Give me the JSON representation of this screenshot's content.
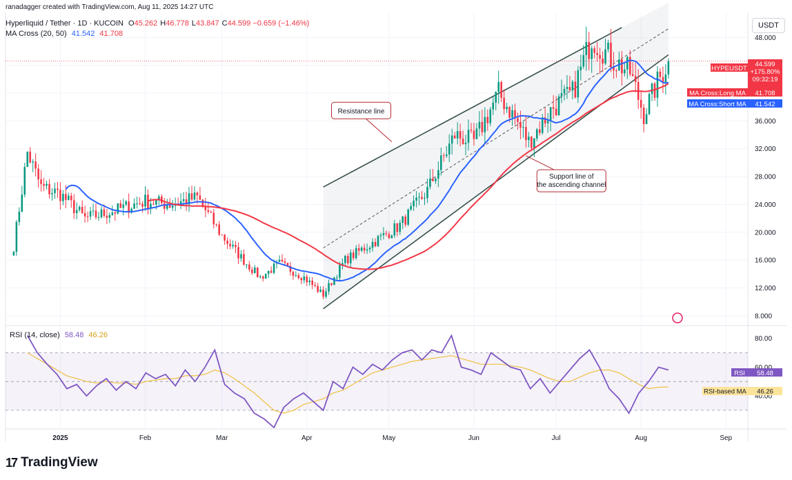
{
  "header": {
    "credit": "ranadagger created with TradingView.com, Aug 11, 2025 14:27 UTC",
    "symbol_line": "Hyperliquid / Tether · 1D · KUCOIN",
    "ohlc": [
      {
        "k": "O",
        "v": "45.262"
      },
      {
        "k": "H",
        "v": "46.778"
      },
      {
        "k": "L",
        "v": "43.847"
      },
      {
        "k": "C",
        "v": "44.599"
      }
    ],
    "change": "−0.659 (−1.46%)",
    "ma_label": "MA Cross (20, 50)",
    "ma_short_value": "41.542",
    "ma_long_value": "41.708",
    "rsi_label": "RSI (14, close)",
    "rsi_value": "58.48",
    "rsi_ma_value": "46.26",
    "currency": "USDT"
  },
  "brand": {
    "name": "TradingView"
  },
  "colors": {
    "up": "#089981",
    "down": "#f23645",
    "ma_short": "#2962ff",
    "ma_long": "#f23645",
    "rsi": "#7e57c2",
    "rsi_ma": "#f0c040",
    "channel": "#37504a"
  },
  "chart_data": [
    {
      "type": "candlestick",
      "title": "Hyperliquid / Tether · 1D · KUCOIN",
      "y_axis": {
        "ticks": [
          8,
          12,
          16,
          20,
          24,
          28,
          32,
          36,
          40,
          44,
          48
        ],
        "ylim": [
          6.6,
          51.6
        ],
        "labels": [
          "8.000",
          "12.000",
          "16.000",
          "20.000",
          "24.000",
          "28.000",
          "32.000",
          "36.000",
          "40.000",
          "44.000",
          "48.000"
        ]
      },
      "x_axis": {
        "labels": [
          "2025",
          "Feb",
          "Mar",
          "Apr",
          "May",
          "Jun",
          "Jul",
          "Aug",
          "Sep"
        ]
      },
      "series": {
        "price_close_approx": [
          {
            "date": "2024-12-15",
            "close": 18.0
          },
          {
            "date": "2024-12-20",
            "close": 31.5
          },
          {
            "date": "2024-12-25",
            "close": 26.5
          },
          {
            "date": "2025-01-01",
            "close": 25.5
          },
          {
            "date": "2025-01-10",
            "close": 22.0
          },
          {
            "date": "2025-01-20",
            "close": 23.0
          },
          {
            "date": "2025-02-01",
            "close": 24.5
          },
          {
            "date": "2025-02-10",
            "close": 24.0
          },
          {
            "date": "2025-02-20",
            "close": 25.0
          },
          {
            "date": "2025-03-01",
            "close": 19.5
          },
          {
            "date": "2025-03-10",
            "close": 15.5
          },
          {
            "date": "2025-03-15",
            "close": 13.5
          },
          {
            "date": "2025-03-22",
            "close": 15.5
          },
          {
            "date": "2025-03-31",
            "close": 13.5
          },
          {
            "date": "2025-04-07",
            "close": 11.0
          },
          {
            "date": "2025-04-15",
            "close": 16.0
          },
          {
            "date": "2025-04-25",
            "close": 18.5
          },
          {
            "date": "2025-05-05",
            "close": 21.0
          },
          {
            "date": "2025-05-15",
            "close": 26.0
          },
          {
            "date": "2025-05-25",
            "close": 34.0
          },
          {
            "date": "2025-06-01",
            "close": 33.0
          },
          {
            "date": "2025-06-10",
            "close": 40.0
          },
          {
            "date": "2025-06-15",
            "close": 37.0
          },
          {
            "date": "2025-06-21",
            "close": 33.0
          },
          {
            "date": "2025-06-30",
            "close": 38.0
          },
          {
            "date": "2025-07-07",
            "close": 40.0
          },
          {
            "date": "2025-07-14",
            "close": 48.0
          },
          {
            "date": "2025-07-21",
            "close": 45.0
          },
          {
            "date": "2025-07-28",
            "close": 43.0
          },
          {
            "date": "2025-08-02",
            "close": 37.0
          },
          {
            "date": "2025-08-07",
            "close": 41.5
          },
          {
            "date": "2025-08-11",
            "close": 44.599
          }
        ],
        "ma_short": {
          "name": "MA Cross:Short MA",
          "last": 41.542
        },
        "ma_long": {
          "name": "MA Cross:Long MA",
          "last": 41.708
        }
      },
      "last_price_label": {
        "symbol": "HYPEUSDT",
        "price": "44.599",
        "change": "+175.80%",
        "countdown": "09:32:19"
      },
      "annotations": [
        {
          "text": "Resistance line"
        },
        {
          "text": "Support line of the ascending channel"
        }
      ],
      "channel": {
        "start_date": "2025-04-07",
        "end_date": "2025-08-11",
        "support_start": 9.0,
        "support_end": 45.5,
        "resistance_start": 26.5,
        "resistance_end": 53.0
      },
      "grid": true
    },
    {
      "type": "line",
      "title": "RSI (14, close)",
      "y_axis": {
        "ticks": [
          40,
          60,
          80
        ],
        "labels": [
          "40.00",
          "60.00",
          "80.00"
        ],
        "ylim": [
          17,
          88
        ]
      },
      "bands": {
        "upper": 70,
        "middle": 50,
        "lower": 30
      },
      "series": [
        {
          "name": "RSI",
          "last": 58.48,
          "values": [
            82,
            70,
            62,
            55,
            45,
            48,
            40,
            47,
            52,
            44,
            50,
            45,
            56,
            52,
            55,
            47,
            58,
            50,
            60,
            72,
            48,
            42,
            38,
            28,
            24,
            18,
            32,
            38,
            42,
            36,
            30,
            50,
            45,
            60,
            55,
            62,
            58,
            65,
            70,
            72,
            65,
            72,
            70,
            82,
            60,
            58,
            55,
            70,
            65,
            60,
            58,
            45,
            52,
            42,
            50,
            58,
            66,
            72,
            60,
            45,
            38,
            28,
            42,
            50,
            60,
            58
          ]
        },
        {
          "name": "RSI-based MA",
          "last": 46.26,
          "values": [
            70,
            66,
            62,
            58,
            54,
            52,
            50,
            49,
            50,
            49,
            49,
            48,
            50,
            51,
            52,
            52,
            54,
            54,
            55,
            58,
            56,
            52,
            47,
            42,
            36,
            30,
            28,
            30,
            34,
            36,
            38,
            42,
            44,
            48,
            52,
            56,
            58,
            60,
            62,
            64,
            65,
            66,
            67,
            68,
            66,
            64,
            62,
            62,
            62,
            61,
            60,
            58,
            55,
            52,
            50,
            50,
            53,
            56,
            58,
            58,
            56,
            52,
            48,
            45,
            46,
            46.26
          ]
        }
      ]
    }
  ],
  "tags": {
    "price_tag": "HYPEUSDT",
    "price_value": "44.599",
    "price_change": "+175.80%",
    "price_countdown": "09:32:19",
    "long_ma_tag": "MA Cross:Long MA",
    "long_ma_value": "41.708",
    "short_ma_tag": "MA Cross:Short MA",
    "short_ma_value": "41.542",
    "rsi_tag": "RSI",
    "rsi_value": "58.48",
    "rsi_ma_tag": "RSI-based MA",
    "rsi_ma_value": "46.26"
  }
}
